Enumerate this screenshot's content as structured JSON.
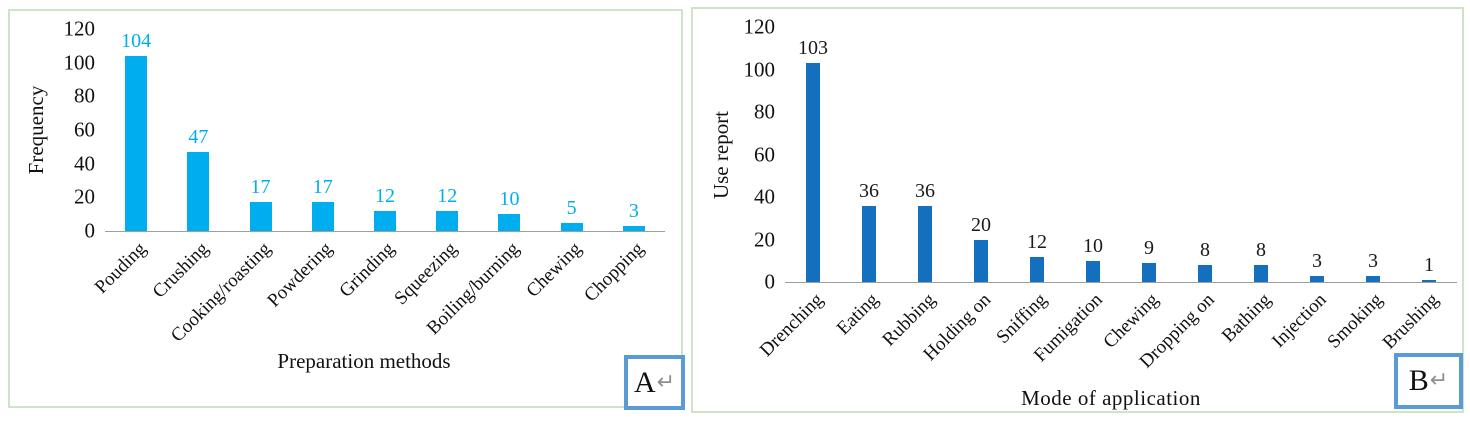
{
  "figure": {
    "background": "#ffffff",
    "panel_border_color": "#cde5c6",
    "corner_box_border_color": "#5B9BD5",
    "axis_line_color": "#9e9e9e",
    "return_mark": "↵",
    "text_color": "#111111"
  },
  "chart_data": [
    {
      "type": "bar",
      "panel_label": "A",
      "title": "",
      "ylabel": "Frequency",
      "xlabel": "Preparation methods",
      "categories": [
        "Pouding",
        "Crushing",
        "Cooking/roasting",
        "Powdering",
        "Grinding",
        "Squeezing",
        "Boiling/burning",
        "Chewing",
        "Chopping"
      ],
      "values": [
        104,
        47,
        17,
        17,
        12,
        12,
        10,
        5,
        3
      ],
      "ylim": [
        0,
        120
      ],
      "yticks": [
        0,
        20,
        40,
        60,
        80,
        100,
        120
      ],
      "grid": false,
      "legend": "none",
      "bar_color": "#00AEEF",
      "value_label_color": "#00AEEF"
    },
    {
      "type": "bar",
      "panel_label": "B",
      "title": "",
      "ylabel": "Use report",
      "xlabel": "Mode of application",
      "categories": [
        "Drenching",
        "Eating",
        "Rubbing",
        "Holding on",
        "Sniffing",
        "Fumigation",
        "Chewing",
        "Dropping on",
        "Bathing",
        "Injection",
        "Smoking",
        "Brushing"
      ],
      "values": [
        103,
        36,
        36,
        20,
        12,
        10,
        9,
        8,
        8,
        3,
        3,
        1
      ],
      "ylim": [
        0,
        120
      ],
      "yticks": [
        0,
        20,
        40,
        60,
        80,
        100,
        120
      ],
      "grid": false,
      "legend": "none",
      "bar_color": "#1470BE",
      "value_label_color": "#1a1a1a"
    }
  ]
}
